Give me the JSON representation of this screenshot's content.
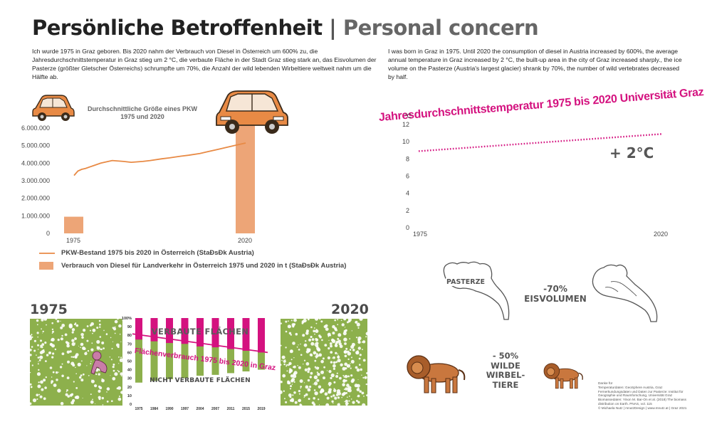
{
  "title": {
    "de": "Persönliche Betroffenheit",
    "sep": "|",
    "en": "Personal concern"
  },
  "intro": {
    "de": "Ich wurde 1975 in Graz geboren. Bis 2020 nahm der Verbrauch von Diesel in Österreich um 600% zu, die Jahresdurchschnittstemperatur in Graz stieg um 2 °C, die verbaute Fläche in der Stadt Graz stieg stark an, das Eisvolumen der Pasterze (größter Gletscher Österreichs) schrumpfte um 70%, die Anzahl der wild lebenden Wirbeltiere weltweit nahm um die Hälfte ab.",
    "en": "I was born in Graz in 1975. Until 2020 the consumption of diesel in Austria increased by 600%, the average annual temperature in Graz increased by 2 °C, the built-up area in the city of Graz increased sharply., the ice volume on the Pasterze (Austria's largest glacier) shrank by 70%, the number of wild vertebrates decreased by half."
  },
  "colors": {
    "orange": "#e88a45",
    "bar": "#eda577",
    "magenta": "#d4127f",
    "green": "#8db04c",
    "darkgreen": "#6d8f37",
    "gray": "#555555",
    "lion": "#c9773e"
  },
  "car_chart": {
    "title_line1": "Durchschnittliche Größe eines PKW",
    "title_line2": "1975 und 2020",
    "legend_line": "PKW-Bestand 1975 bis 2020 in Österreich (StaÐsÐk Austria)",
    "legend_bar": "Verbrauch von Diesel für Landverkehr in Österreich 1975 und 2020 in t (StaÐsÐk Austria)"
  },
  "temp_chart": {
    "title": "Jahresdurchschnittstemperatur 1975 bis 2020 Universität Graz",
    "unit_label": "°C",
    "change_label": "+ 2°C"
  },
  "glacier": {
    "name": "PASTERZE",
    "change": "-70%",
    "label": "EISVOLUMEN"
  },
  "animals": {
    "change": "- 50%",
    "line1": "WILDE",
    "line2": "WIRBEL-",
    "line3": "TIERE"
  },
  "landuse": {
    "year_left": "1975",
    "year_right": "2020",
    "built_label": "VERBAUTE FLÄCHEN",
    "unbuilt_label": "NICHT VERBAUTE FLÄCHEN",
    "trend_label": "Flächenverbrauch 1975 bis 2020 in Graz",
    "pct_labels": [
      "100%",
      "90",
      "80",
      "70",
      "60",
      "50",
      "40",
      "30",
      "20",
      "10",
      "0"
    ]
  },
  "credits": [
    "Danke für",
    "Temperaturdaten: GeoSphere Austria, Graz",
    "Fernerkundungsdaten und Daten zur Pasterze: Institut für",
    "Geographie und Raumforschung, Universität Graz",
    "Biomassedaten: Yinon M. Bar-On et al. (2018) The biomass",
    "distribution on Earth. PNAS, vol. 115",
    "© Michaela Nutz | mnutzDesign | www.mnutz.at | Graz 2021"
  ],
  "chart_data": [
    {
      "type": "bar",
      "title": "Durchschnittliche Größe eines PKW 1975 und 2020",
      "categories": [
        "1975",
        "2020"
      ],
      "y_ticks": [
        "0",
        "1.000.000",
        "2.000.000",
        "3.000.000",
        "4.000.000",
        "5.000.000",
        "6.000.000"
      ],
      "ylim": [
        0,
        6500000
      ],
      "series": [
        {
          "name": "Verbrauch von Diesel für Landverkehr in Österreich 1975 und 2020 in t (StaÐsÐk Austria)",
          "type": "bar",
          "values": [
            950000,
            6250000
          ]
        },
        {
          "name": "PKW-Bestand 1975 bis 2020 in Österreich (StaÐsÐk Austria)",
          "type": "line",
          "x": [
            1975,
            1976,
            1977,
            1978,
            1980,
            1982,
            1985,
            1988,
            1990,
            1993,
            1995,
            1998,
            2000,
            2003,
            2005,
            2008,
            2010,
            2013,
            2015,
            2018,
            2020
          ],
          "values": [
            3300000,
            3550000,
            3650000,
            3700000,
            3850000,
            4000000,
            4150000,
            4100000,
            4050000,
            4100000,
            4150000,
            4250000,
            4300000,
            4400000,
            4450000,
            4550000,
            4650000,
            4800000,
            4900000,
            5050000,
            5150000
          ]
        }
      ]
    },
    {
      "type": "line",
      "title": "Jahresdurchschnittstemperatur 1975 bis 2020 Universität Graz",
      "x_ticks": [
        "1975",
        "2020"
      ],
      "y_ticks": [
        "0",
        "2",
        "4",
        "6",
        "8",
        "10",
        "12"
      ],
      "ylim": [
        0,
        12
      ],
      "series": [
        {
          "name": "Jahresdurchschnittstemperatur",
          "x": [
            1975,
            2020
          ],
          "values": [
            8.9,
            10.9
          ]
        }
      ]
    },
    {
      "type": "bar",
      "title": "Flächenverbrauch 1975 bis 2020 in Graz",
      "categories": [
        "1975",
        "1984",
        "1990",
        "1997",
        "2004",
        "2007",
        "2011",
        "2015",
        "2019"
      ],
      "ylim": [
        0,
        100
      ],
      "series": [
        {
          "name": "VERBAUTE FLÄCHEN",
          "values": [
            25,
            27,
            29,
            30,
            33,
            34,
            36,
            38,
            40
          ]
        },
        {
          "name": "NICHT VERBAUTE FLÄCHEN",
          "values": [
            75,
            73,
            71,
            70,
            67,
            66,
            64,
            62,
            60
          ]
        }
      ]
    }
  ]
}
